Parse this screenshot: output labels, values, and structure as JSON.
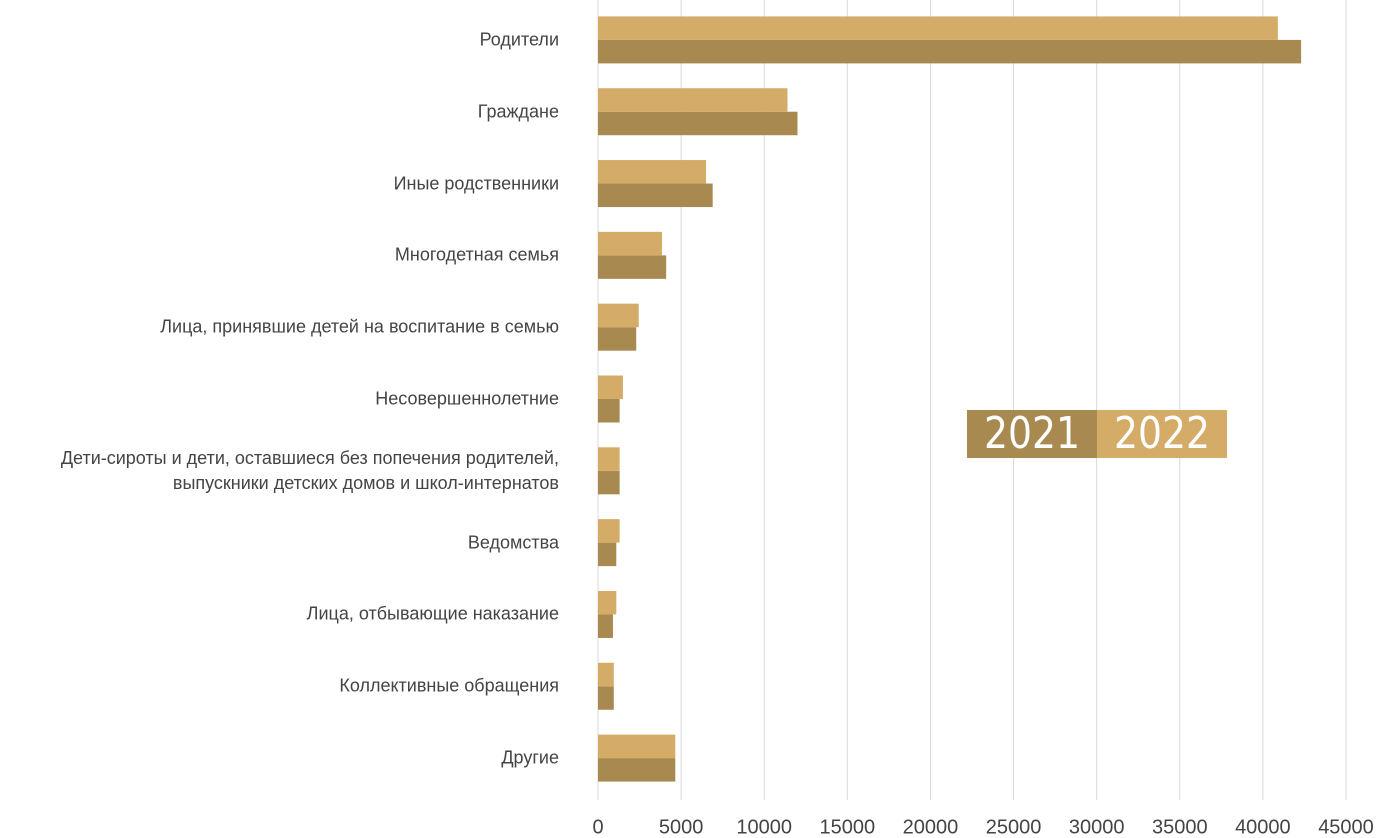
{
  "chart_data": {
    "type": "hbar",
    "categories": [
      "Родители",
      "Граждане",
      "Иные родственники",
      "Многодетная семья",
      "Лица, принявшие детей на воспитание в семью",
      "Несовершеннолетние",
      "Дети-сироты и дети, оставшиеся без попечения родителей,\nвыпускники детских домов и школ-интернатов",
      "Ведомства",
      "Лица, отбывающие наказание",
      "Коллективные обращения",
      "Другие"
    ],
    "series": [
      {
        "name": "2021",
        "color": "#a88a50",
        "values": [
          42300,
          12000,
          6900,
          4100,
          2300,
          1300,
          1300,
          1100,
          900,
          950,
          4650
        ]
      },
      {
        "name": "2022",
        "color": "#d4ac68",
        "values": [
          40900,
          11400,
          6500,
          3850,
          2450,
          1500,
          1300,
          1300,
          1100,
          950,
          4650
        ]
      }
    ],
    "xlim": [
      0,
      45000
    ],
    "xticks": [
      0,
      5000,
      10000,
      15000,
      20000,
      25000,
      30000,
      35000,
      40000,
      45000
    ],
    "grid": true
  }
}
